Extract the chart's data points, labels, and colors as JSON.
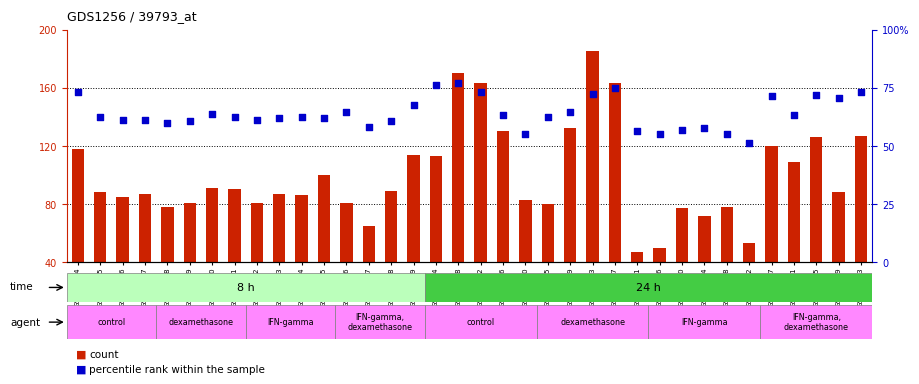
{
  "title": "GDS1256 / 39793_at",
  "categories": [
    "GSM31694",
    "GSM31695",
    "GSM31696",
    "GSM31697",
    "GSM31698",
    "GSM31699",
    "GSM31700",
    "GSM31701",
    "GSM31702",
    "GSM31703",
    "GSM31704",
    "GSM31705",
    "GSM31706",
    "GSM31707",
    "GSM31708",
    "GSM31709",
    "GSM31674",
    "GSM31678",
    "GSM31682",
    "GSM31686",
    "GSM31690",
    "GSM31675",
    "GSM31679",
    "GSM31683",
    "GSM31687",
    "GSM31691",
    "GSM31676",
    "GSM31680",
    "GSM31684",
    "GSM31688",
    "GSM31692",
    "GSM31677",
    "GSM31681",
    "GSM31685",
    "GSM31689",
    "GSM31693"
  ],
  "bar_values": [
    118,
    88,
    85,
    87,
    78,
    81,
    91,
    90,
    81,
    87,
    86,
    100,
    81,
    65,
    89,
    114,
    113,
    170,
    163,
    130,
    83,
    80,
    132,
    185,
    163,
    47,
    50,
    77,
    72,
    78,
    53,
    120,
    109,
    126,
    88,
    127
  ],
  "scatter_values": [
    157,
    140,
    138,
    138,
    136,
    137,
    142,
    140,
    138,
    139,
    140,
    139,
    143,
    133,
    137,
    148,
    162,
    163,
    157,
    141,
    128,
    140,
    143,
    156,
    160,
    130,
    128,
    131,
    132,
    128,
    122,
    154,
    141,
    155,
    153,
    157
  ],
  "ylim_left": [
    40,
    200
  ],
  "ylim_right": [
    0,
    100
  ],
  "yticks_left": [
    40,
    80,
    120,
    160,
    200
  ],
  "yticks_right": [
    0,
    25,
    50,
    75,
    100
  ],
  "bar_color": "#cc2200",
  "scatter_color": "#0000cc",
  "time_colors": [
    "#bbffbb",
    "#44cc44"
  ],
  "time_labels": [
    "8 h",
    "24 h"
  ],
  "time_starts": [
    0,
    16
  ],
  "time_ends": [
    16,
    36
  ],
  "agent_color": "#ff88ff",
  "agent_groups": [
    {
      "label": "control",
      "start": 0,
      "end": 4
    },
    {
      "label": "dexamethasone",
      "start": 4,
      "end": 8
    },
    {
      "label": "IFN-gamma",
      "start": 8,
      "end": 12
    },
    {
      "label": "IFN-gamma,\ndexamethasone",
      "start": 12,
      "end": 16
    },
    {
      "label": "control",
      "start": 16,
      "end": 21
    },
    {
      "label": "dexamethasone",
      "start": 21,
      "end": 26
    },
    {
      "label": "IFN-gamma",
      "start": 26,
      "end": 31
    },
    {
      "label": "IFN-gamma,\ndexamethasone",
      "start": 31,
      "end": 36
    }
  ],
  "legend_count_label": "count",
  "legend_pct_label": "percentile rank within the sample",
  "label_time": "time",
  "label_agent": "agent"
}
